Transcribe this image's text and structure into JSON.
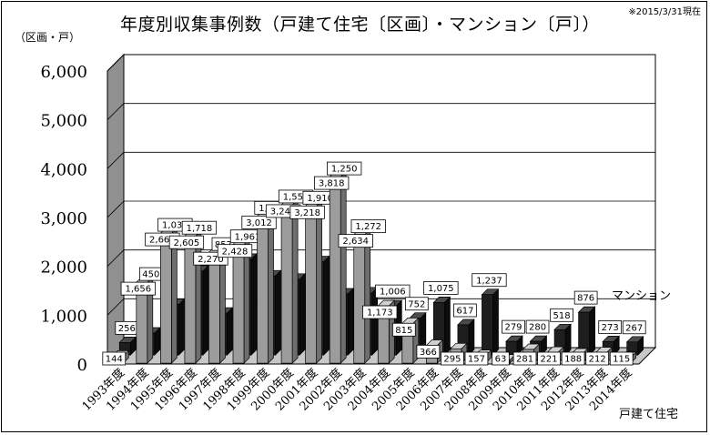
{
  "title": "年度別収集事例数（戸建て住宅〔区画〕・マンション〔戸〕）",
  "as_of": "※2015/3/31現在",
  "unit_label": "（区画・戸）",
  "chart_data": {
    "type": "bar",
    "categories": [
      "1993年度",
      "1994年度",
      "1995年度",
      "1996年度",
      "1997年度",
      "1998年度",
      "1999年度",
      "2000年度",
      "2001年度",
      "2002年度",
      "2003年度",
      "2004年度",
      "2005年度",
      "2006年度",
      "2007年度",
      "2008年度",
      "2009年度",
      "2010年度",
      "2011年度",
      "2012年度",
      "2013年度",
      "2014年度"
    ],
    "series": [
      {
        "name": "戸建て住宅",
        "values": [
          144,
          1656,
          2663,
          2605,
          2270,
          2428,
          3012,
          3243,
          3218,
          3818,
          2634,
          1173,
          815,
          366,
          295,
          157,
          63,
          281,
          221,
          188,
          212,
          115
        ],
        "color": "#a0a0a0"
      },
      {
        "name": "マンション",
        "values": [
          256,
          450,
          1035,
          1718,
          857,
          1961,
          1619,
          1550,
          1910,
          1250,
          1272,
          1006,
          752,
          1075,
          617,
          1237,
          279,
          280,
          518,
          876,
          273,
          267
        ],
        "color": "#202020"
      }
    ],
    "yticks": [
      "0",
      "1,000",
      "2,000",
      "3,000",
      "4,000",
      "5,000",
      "6,000"
    ],
    "ylim": [
      0,
      6000
    ],
    "grid": true,
    "legend_position": "right"
  }
}
